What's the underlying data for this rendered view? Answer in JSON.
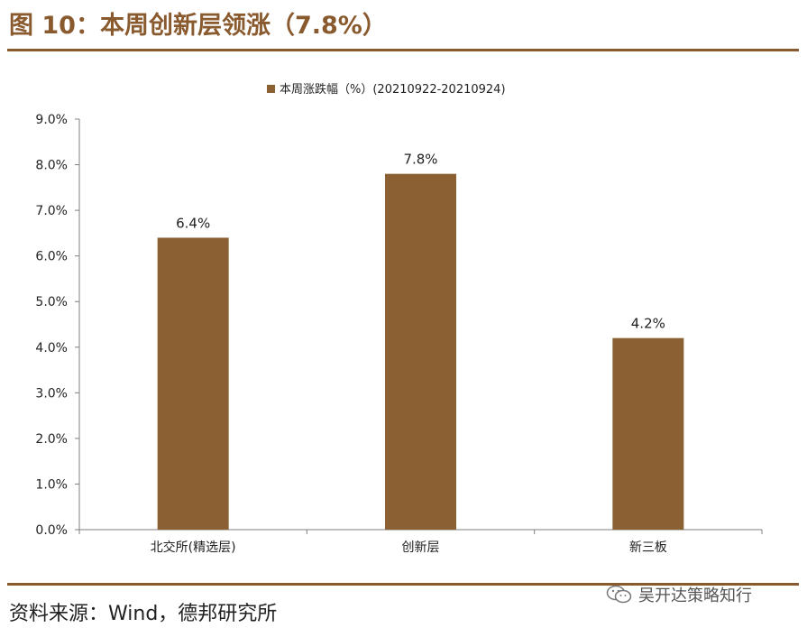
{
  "figure": {
    "title": "图 10：本周创新层领涨（7.8%）",
    "source": "资料来源：Wind，德邦研究所",
    "watermark": "吴开达策略知行",
    "watermark_icon": "wechat-icon"
  },
  "colors": {
    "bar": "#8b6134",
    "accent": "#8a5a2f",
    "axis": "#7f7f7f"
  },
  "chart_data": {
    "type": "bar",
    "categories": [
      "北交所(精选层)",
      "创新层",
      "新三板"
    ],
    "series": [
      {
        "name": "本周涨跌幅（%）(20210922-20210924)",
        "values": [
          6.4,
          7.8,
          4.2
        ]
      }
    ],
    "data_labels": [
      "6.4%",
      "7.8%",
      "4.2%"
    ],
    "y_ticks": [
      "0.0%",
      "1.0%",
      "2.0%",
      "3.0%",
      "4.0%",
      "5.0%",
      "6.0%",
      "7.0%",
      "8.0%",
      "9.0%"
    ],
    "ylim": [
      0,
      9
    ],
    "grid": false,
    "legend_position": "top-center"
  }
}
